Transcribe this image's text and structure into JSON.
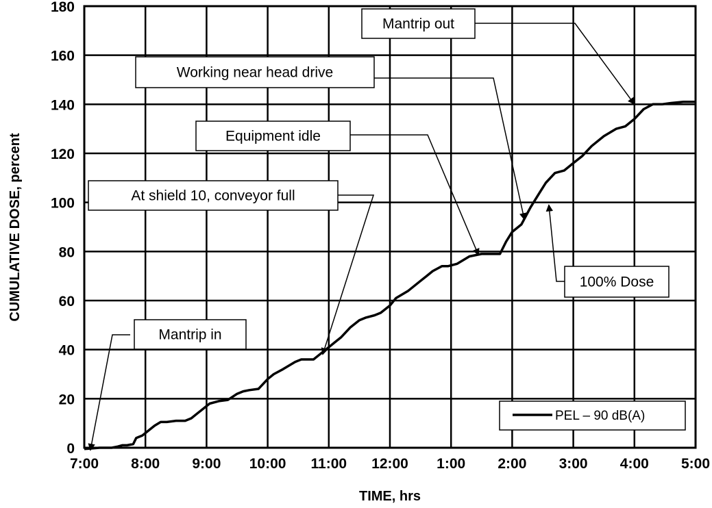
{
  "chart_data": {
    "type": "line",
    "xlabel": "TIME, hrs",
    "ylabel": "CUMULATIVE DOSE, percent",
    "x_tick_labels": [
      "7:00",
      "8:00",
      "9:00",
      "10:00",
      "11:00",
      "12:00",
      "1:00",
      "2:00",
      "3:00",
      "4:00",
      "5:00"
    ],
    "y_ticks": [
      0,
      20,
      40,
      60,
      80,
      100,
      120,
      140,
      160,
      180
    ],
    "xlim_hours": [
      0,
      10
    ],
    "ylim": [
      0,
      180
    ],
    "grid": true,
    "legend": {
      "placement": "bottom-right",
      "entries": [
        "PEL – 90 dB(A)"
      ]
    },
    "series": [
      {
        "name": "PEL – 90 dB(A)",
        "color": "#000000",
        "x_hours": [
          0,
          0.25,
          0.45,
          0.55,
          0.62,
          0.7,
          0.8,
          0.85,
          0.95,
          1.0,
          1.05,
          1.15,
          1.25,
          1.35,
          1.5,
          1.65,
          1.75,
          1.85,
          1.95,
          2.05,
          2.2,
          2.35,
          2.5,
          2.6,
          2.7,
          2.85,
          3.0,
          3.1,
          3.25,
          3.45,
          3.55,
          3.65,
          3.75,
          3.85,
          4.0,
          4.1,
          4.2,
          4.35,
          4.5,
          4.6,
          4.75,
          4.85,
          5.0,
          5.1,
          5.3,
          5.5,
          5.6,
          5.7,
          5.85,
          5.95,
          6.1,
          6.3,
          6.5,
          6.7,
          6.8,
          6.9,
          7.0,
          7.15,
          7.3,
          7.45,
          7.55,
          7.7,
          7.85,
          8.0,
          8.15,
          8.3,
          8.5,
          8.7,
          8.85,
          9.0,
          9.15,
          9.3,
          9.35,
          9.45,
          9.6,
          9.8,
          10.0
        ],
        "y": [
          -0.5,
          0,
          0,
          0.5,
          1,
          1,
          1.5,
          4,
          5,
          6,
          7,
          9,
          10.5,
          10.5,
          11,
          11,
          12,
          14,
          16,
          18,
          19,
          19.5,
          22,
          23,
          23.5,
          24,
          28,
          30,
          32,
          35,
          36,
          36,
          36,
          38,
          41,
          43,
          45,
          49,
          52,
          53,
          54,
          55,
          58,
          61,
          64,
          68,
          70,
          72,
          74,
          74,
          75,
          78,
          79,
          79,
          79,
          84,
          88,
          91,
          98,
          104,
          108,
          112,
          113,
          116,
          119,
          123,
          127,
          130,
          131,
          134,
          138,
          140,
          140,
          140,
          140.5,
          141,
          141
        ],
        "annotations": [
          {
            "text": "Mantrip in",
            "x_hours": 0.1,
            "y": -1
          },
          {
            "text": "At shield 10, conveyor full",
            "x_hours": 3.9,
            "y": 38
          },
          {
            "text": "Equipment idle",
            "x_hours": 6.45,
            "y": 78.5
          },
          {
            "text": "Working near head drive",
            "x_hours": 7.2,
            "y": 93
          },
          {
            "text": "100% Dose",
            "x_hours": 7.6,
            "y": 99
          },
          {
            "text": "Mantrip out",
            "x_hours": 9.0,
            "y": 140
          }
        ]
      }
    ]
  }
}
